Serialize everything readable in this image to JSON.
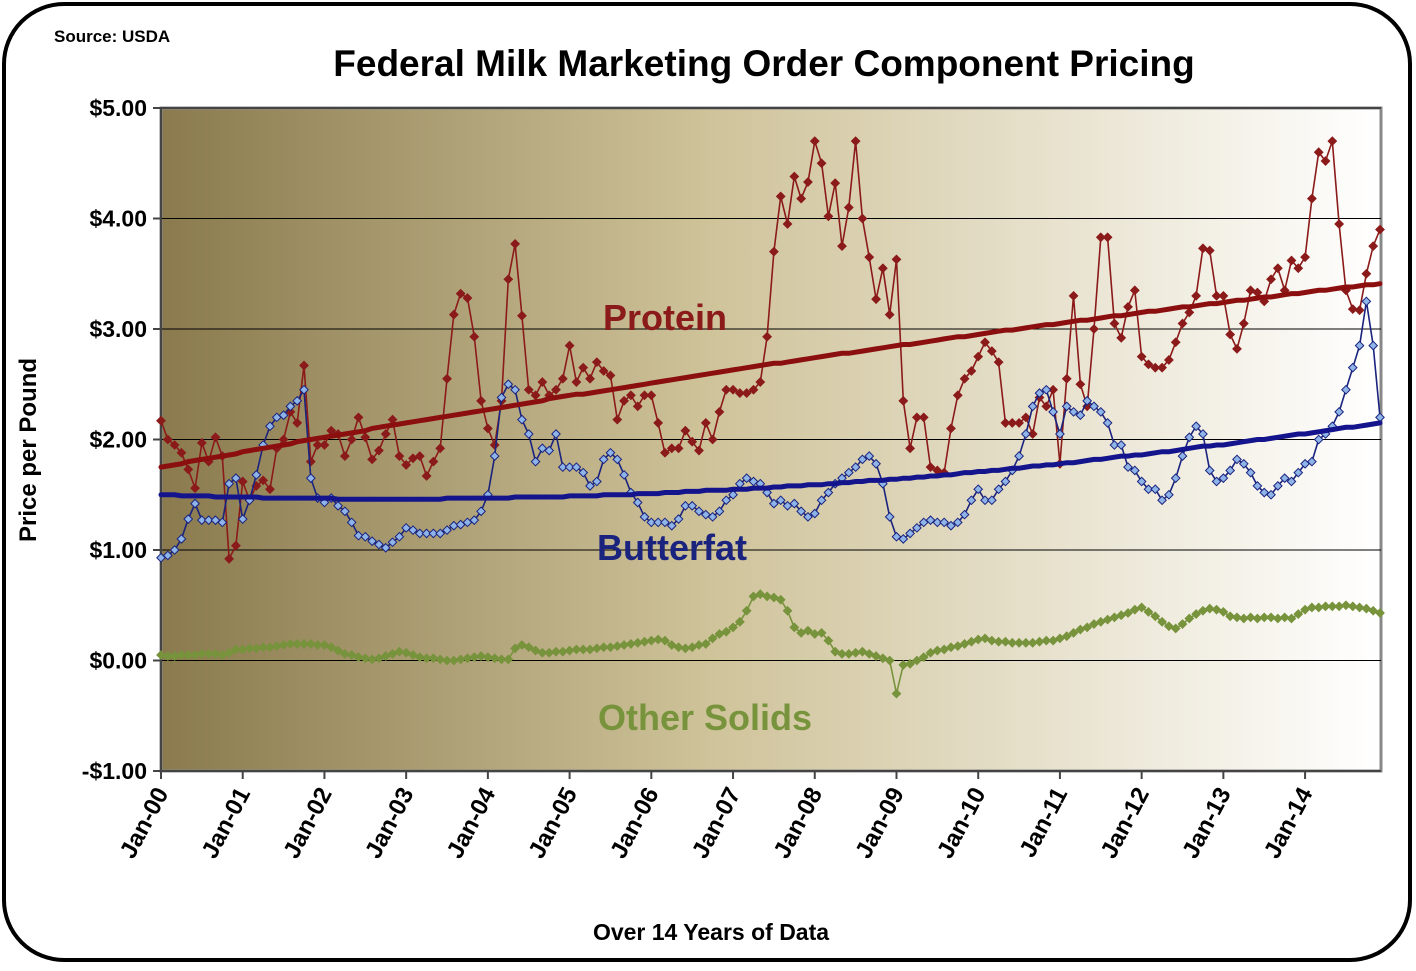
{
  "chart_data": {
    "type": "line",
    "title": "Federal Milk Marketing Order Component Pricing",
    "source": "Source: USDA",
    "y_label": "Price per Pound",
    "x_label": "Over 14 Years of Data",
    "ylim": [
      -1,
      5
    ],
    "yticks": [
      {
        "value": -1,
        "label": "-$1.00"
      },
      {
        "value": 0,
        "label": "$0.00"
      },
      {
        "value": 1,
        "label": "$1.00"
      },
      {
        "value": 2,
        "label": "$2.00"
      },
      {
        "value": 3,
        "label": "$3.00"
      },
      {
        "value": 4,
        "label": "$4.00"
      },
      {
        "value": 5,
        "label": "$5.00"
      }
    ],
    "grid": true,
    "categories": [
      "Jan-00",
      null,
      null,
      null,
      null,
      null,
      null,
      null,
      null,
      null,
      null,
      null,
      "Jan-01",
      null,
      null,
      null,
      null,
      null,
      null,
      null,
      null,
      null,
      null,
      null,
      "Jan-02",
      null,
      null,
      null,
      null,
      null,
      null,
      null,
      null,
      null,
      null,
      null,
      "Jan-03",
      null,
      null,
      null,
      null,
      null,
      null,
      null,
      null,
      null,
      null,
      null,
      "Jan-04",
      null,
      null,
      null,
      null,
      null,
      null,
      null,
      null,
      null,
      null,
      null,
      "Jan-05",
      null,
      null,
      null,
      null,
      null,
      null,
      null,
      null,
      null,
      null,
      null,
      "Jan-06",
      null,
      null,
      null,
      null,
      null,
      null,
      null,
      null,
      null,
      null,
      null,
      "Jan-07",
      null,
      null,
      null,
      null,
      null,
      null,
      null,
      null,
      null,
      null,
      null,
      "Jan-08",
      null,
      null,
      null,
      null,
      null,
      null,
      null,
      null,
      null,
      null,
      null,
      "Jan-09",
      null,
      null,
      null,
      null,
      null,
      null,
      null,
      null,
      null,
      null,
      null,
      "Jan-10",
      null,
      null,
      null,
      null,
      null,
      null,
      null,
      null,
      null,
      null,
      null,
      "Jan-11",
      null,
      null,
      null,
      null,
      null,
      null,
      null,
      null,
      null,
      null,
      null,
      "Jan-12",
      null,
      null,
      null,
      null,
      null,
      null,
      null,
      null,
      null,
      null,
      null,
      "Jan-13",
      null,
      null,
      null,
      null,
      null,
      null,
      null,
      null,
      null,
      null,
      null,
      "Jan-14",
      null,
      null,
      null,
      null,
      null,
      null,
      null,
      null,
      null,
      null,
      null
    ],
    "series": [
      {
        "name": "Protein",
        "color": "#8b1a1a",
        "marker_fill": "#8b1a1a",
        "trend_color": "#8b0f0f",
        "values": [
          2.17,
          2.0,
          1.95,
          1.88,
          1.73,
          1.56,
          1.97,
          1.8,
          2.02,
          1.85,
          0.92,
          1.04,
          1.62,
          1.45,
          1.58,
          1.63,
          1.55,
          1.92,
          2.0,
          2.25,
          2.15,
          2.67,
          1.8,
          1.95,
          1.95,
          2.08,
          2.05,
          1.85,
          2.0,
          2.2,
          2.02,
          1.82,
          1.9,
          2.05,
          2.18,
          1.85,
          1.77,
          1.83,
          1.85,
          1.67,
          1.8,
          1.92,
          2.55,
          3.13,
          3.32,
          3.28,
          2.93,
          2.35,
          2.1,
          1.95,
          2.35,
          3.45,
          3.77,
          3.12,
          2.45,
          2.4,
          2.52,
          2.4,
          2.45,
          2.55,
          2.85,
          2.52,
          2.65,
          2.55,
          2.7,
          2.62,
          2.58,
          2.18,
          2.35,
          2.4,
          2.3,
          2.4,
          2.4,
          2.15,
          1.88,
          1.92,
          1.92,
          2.08,
          1.98,
          1.9,
          2.15,
          2.0,
          2.25,
          2.45,
          2.45,
          2.42,
          2.42,
          2.45,
          2.52,
          2.93,
          3.7,
          4.2,
          3.95,
          4.38,
          4.18,
          4.33,
          4.7,
          4.5,
          4.02,
          4.32,
          3.75,
          4.1,
          4.7,
          4.0,
          3.65,
          3.27,
          3.55,
          3.13,
          3.63,
          2.35,
          1.92,
          2.2,
          2.2,
          1.75,
          1.72,
          1.7,
          2.1,
          2.4,
          2.55,
          2.62,
          2.75,
          2.88,
          2.8,
          2.7,
          2.15,
          2.15,
          2.15,
          2.2,
          2.05,
          2.38,
          2.3,
          2.45,
          1.78,
          2.55,
          3.3,
          2.5,
          2.3,
          3.0,
          3.83,
          3.83,
          3.05,
          2.92,
          3.2,
          3.35,
          2.75,
          2.68,
          2.65,
          2.65,
          2.72,
          2.88,
          3.05,
          3.15,
          3.3,
          3.73,
          3.71,
          3.3,
          3.3,
          2.95,
          2.82,
          3.05,
          3.35,
          3.33,
          3.25,
          3.45,
          3.55,
          3.35,
          3.62,
          3.55,
          3.65,
          4.18,
          4.6,
          4.52,
          4.7,
          3.95,
          3.35,
          3.18,
          3.17,
          3.5,
          3.75,
          3.9
        ],
        "trend": [
          1.75,
          1.76,
          1.77,
          1.78,
          1.8,
          1.81,
          1.82,
          1.83,
          1.84,
          1.85,
          1.86,
          1.87,
          1.89,
          1.9,
          1.91,
          1.92,
          1.93,
          1.94,
          1.95,
          1.96,
          1.98,
          1.99,
          2.0,
          2.01,
          2.02,
          2.03,
          2.04,
          2.05,
          2.06,
          2.07,
          2.08,
          2.1,
          2.11,
          2.12,
          2.13,
          2.14,
          2.15,
          2.16,
          2.17,
          2.18,
          2.19,
          2.2,
          2.21,
          2.22,
          2.23,
          2.24,
          2.25,
          2.26,
          2.27,
          2.28,
          2.29,
          2.3,
          2.31,
          2.32,
          2.33,
          2.34,
          2.35,
          2.37,
          2.38,
          2.39,
          2.4,
          2.41,
          2.41,
          2.42,
          2.43,
          2.44,
          2.45,
          2.46,
          2.47,
          2.48,
          2.49,
          2.5,
          2.51,
          2.52,
          2.53,
          2.54,
          2.55,
          2.56,
          2.57,
          2.58,
          2.59,
          2.6,
          2.61,
          2.62,
          2.63,
          2.64,
          2.65,
          2.66,
          2.67,
          2.68,
          2.69,
          2.69,
          2.7,
          2.71,
          2.72,
          2.73,
          2.74,
          2.75,
          2.76,
          2.77,
          2.78,
          2.78,
          2.79,
          2.8,
          2.81,
          2.82,
          2.83,
          2.84,
          2.85,
          2.86,
          2.86,
          2.87,
          2.88,
          2.89,
          2.9,
          2.91,
          2.92,
          2.93,
          2.93,
          2.94,
          2.95,
          2.96,
          2.97,
          2.98,
          2.99,
          2.99,
          3.0,
          3.01,
          3.02,
          3.03,
          3.04,
          3.04,
          3.05,
          3.06,
          3.07,
          3.08,
          3.08,
          3.09,
          3.1,
          3.11,
          3.12,
          3.12,
          3.13,
          3.14,
          3.15,
          3.16,
          3.16,
          3.17,
          3.18,
          3.19,
          3.2,
          3.2,
          3.21,
          3.22,
          3.23,
          3.23,
          3.24,
          3.25,
          3.26,
          3.26,
          3.27,
          3.28,
          3.29,
          3.29,
          3.3,
          3.31,
          3.32,
          3.32,
          3.33,
          3.34,
          3.35,
          3.35,
          3.36,
          3.37,
          3.38,
          3.38,
          3.39,
          3.4,
          3.4,
          3.41
        ]
      },
      {
        "name": "Butterfat",
        "color": "#1a237e",
        "marker_fill": "#8fb4e8",
        "trend_color": "#14148c",
        "values": [
          0.93,
          0.95,
          1.0,
          1.1,
          1.28,
          1.42,
          1.27,
          1.27,
          1.27,
          1.25,
          1.6,
          1.65,
          1.28,
          1.45,
          1.68,
          1.95,
          2.12,
          2.2,
          2.22,
          2.3,
          2.35,
          2.45,
          1.65,
          1.47,
          1.43,
          1.47,
          1.4,
          1.35,
          1.25,
          1.13,
          1.12,
          1.08,
          1.05,
          1.02,
          1.07,
          1.12,
          1.2,
          1.18,
          1.15,
          1.15,
          1.15,
          1.15,
          1.18,
          1.22,
          1.23,
          1.25,
          1.27,
          1.35,
          1.5,
          1.85,
          2.38,
          2.5,
          2.45,
          2.18,
          2.05,
          1.8,
          1.92,
          1.9,
          2.05,
          1.75,
          1.75,
          1.75,
          1.7,
          1.58,
          1.62,
          1.82,
          1.88,
          1.82,
          1.68,
          1.52,
          1.43,
          1.3,
          1.25,
          1.25,
          1.25,
          1.22,
          1.28,
          1.4,
          1.4,
          1.35,
          1.32,
          1.3,
          1.35,
          1.45,
          1.5,
          1.6,
          1.65,
          1.62,
          1.6,
          1.52,
          1.42,
          1.45,
          1.4,
          1.42,
          1.35,
          1.3,
          1.33,
          1.45,
          1.52,
          1.6,
          1.65,
          1.7,
          1.75,
          1.82,
          1.85,
          1.78,
          1.6,
          1.3,
          1.12,
          1.1,
          1.15,
          1.2,
          1.25,
          1.27,
          1.25,
          1.25,
          1.22,
          1.25,
          1.32,
          1.45,
          1.55,
          1.45,
          1.45,
          1.55,
          1.62,
          1.72,
          1.85,
          2.05,
          2.3,
          2.42,
          2.45,
          2.25,
          2.05,
          2.3,
          2.25,
          2.22,
          2.35,
          2.3,
          2.25,
          2.15,
          1.95,
          1.95,
          1.75,
          1.72,
          1.62,
          1.55,
          1.55,
          1.45,
          1.5,
          1.65,
          1.85,
          2.02,
          2.12,
          2.05,
          1.72,
          1.62,
          1.65,
          1.72,
          1.82,
          1.78,
          1.7,
          1.58,
          1.52,
          1.5,
          1.58,
          1.65,
          1.62,
          1.7,
          1.78,
          1.8,
          2.0,
          2.05,
          2.12,
          2.25,
          2.45,
          2.65,
          2.85,
          3.25,
          2.85,
          2.2
        ],
        "trend": [
          1.5,
          1.5,
          1.5,
          1.49,
          1.49,
          1.49,
          1.49,
          1.49,
          1.48,
          1.48,
          1.48,
          1.48,
          1.48,
          1.48,
          1.48,
          1.47,
          1.47,
          1.47,
          1.47,
          1.47,
          1.47,
          1.47,
          1.47,
          1.47,
          1.47,
          1.47,
          1.46,
          1.46,
          1.46,
          1.46,
          1.46,
          1.46,
          1.46,
          1.46,
          1.46,
          1.46,
          1.46,
          1.46,
          1.46,
          1.46,
          1.46,
          1.46,
          1.47,
          1.47,
          1.47,
          1.47,
          1.47,
          1.47,
          1.47,
          1.47,
          1.47,
          1.47,
          1.48,
          1.48,
          1.48,
          1.48,
          1.48,
          1.48,
          1.48,
          1.48,
          1.49,
          1.49,
          1.49,
          1.49,
          1.49,
          1.5,
          1.5,
          1.5,
          1.5,
          1.5,
          1.51,
          1.51,
          1.51,
          1.51,
          1.52,
          1.52,
          1.52,
          1.53,
          1.53,
          1.53,
          1.54,
          1.54,
          1.54,
          1.54,
          1.55,
          1.55,
          1.55,
          1.56,
          1.56,
          1.56,
          1.57,
          1.57,
          1.58,
          1.58,
          1.58,
          1.59,
          1.59,
          1.59,
          1.6,
          1.6,
          1.61,
          1.61,
          1.62,
          1.62,
          1.63,
          1.63,
          1.63,
          1.64,
          1.64,
          1.65,
          1.65,
          1.66,
          1.66,
          1.67,
          1.67,
          1.68,
          1.68,
          1.69,
          1.7,
          1.7,
          1.71,
          1.71,
          1.72,
          1.72,
          1.73,
          1.74,
          1.74,
          1.75,
          1.76,
          1.76,
          1.77,
          1.77,
          1.78,
          1.79,
          1.79,
          1.8,
          1.81,
          1.82,
          1.82,
          1.83,
          1.84,
          1.85,
          1.85,
          1.86,
          1.86,
          1.87,
          1.88,
          1.89,
          1.89,
          1.9,
          1.91,
          1.92,
          1.93,
          1.94,
          1.94,
          1.95,
          1.95,
          1.96,
          1.97,
          1.98,
          1.99,
          2.0,
          2.0,
          2.01,
          2.02,
          2.03,
          2.04,
          2.05,
          2.05,
          2.06,
          2.07,
          2.08,
          2.09,
          2.1,
          2.11,
          2.11,
          2.12,
          2.13,
          2.14,
          2.15
        ]
      },
      {
        "name": "Other Solids",
        "color": "#77933c",
        "marker_fill": "#77933c",
        "values": [
          0.05,
          0.04,
          0.04,
          0.05,
          0.05,
          0.05,
          0.06,
          0.06,
          0.06,
          0.05,
          0.07,
          0.1,
          0.1,
          0.11,
          0.11,
          0.12,
          0.12,
          0.13,
          0.14,
          0.15,
          0.15,
          0.15,
          0.15,
          0.14,
          0.14,
          0.12,
          0.09,
          0.06,
          0.05,
          0.03,
          0.02,
          0.01,
          0.02,
          0.04,
          0.06,
          0.08,
          0.07,
          0.05,
          0.03,
          0.02,
          0.02,
          0.01,
          0.0,
          0.0,
          0.01,
          0.02,
          0.03,
          0.04,
          0.03,
          0.02,
          0.01,
          0.01,
          0.11,
          0.14,
          0.12,
          0.09,
          0.07,
          0.07,
          0.08,
          0.08,
          0.09,
          0.1,
          0.1,
          0.1,
          0.11,
          0.12,
          0.12,
          0.13,
          0.14,
          0.15,
          0.16,
          0.17,
          0.18,
          0.19,
          0.18,
          0.14,
          0.12,
          0.11,
          0.12,
          0.14,
          0.15,
          0.2,
          0.24,
          0.26,
          0.3,
          0.35,
          0.45,
          0.58,
          0.6,
          0.58,
          0.57,
          0.55,
          0.45,
          0.3,
          0.25,
          0.27,
          0.24,
          0.25,
          0.18,
          0.08,
          0.06,
          0.06,
          0.07,
          0.08,
          0.06,
          0.04,
          0.02,
          0.0,
          -0.3,
          -0.04,
          -0.03,
          0.0,
          0.03,
          0.07,
          0.09,
          0.1,
          0.12,
          0.13,
          0.15,
          0.17,
          0.19,
          0.2,
          0.18,
          0.17,
          0.17,
          0.16,
          0.16,
          0.16,
          0.16,
          0.17,
          0.18,
          0.18,
          0.2,
          0.22,
          0.25,
          0.28,
          0.3,
          0.33,
          0.35,
          0.37,
          0.39,
          0.41,
          0.43,
          0.46,
          0.48,
          0.44,
          0.4,
          0.35,
          0.31,
          0.29,
          0.33,
          0.38,
          0.42,
          0.45,
          0.47,
          0.46,
          0.44,
          0.4,
          0.39,
          0.38,
          0.39,
          0.38,
          0.39,
          0.39,
          0.38,
          0.39,
          0.38,
          0.42,
          0.46,
          0.48,
          0.48,
          0.49,
          0.49,
          0.49,
          0.5,
          0.49,
          0.48,
          0.47,
          0.45,
          0.43
        ]
      }
    ]
  }
}
